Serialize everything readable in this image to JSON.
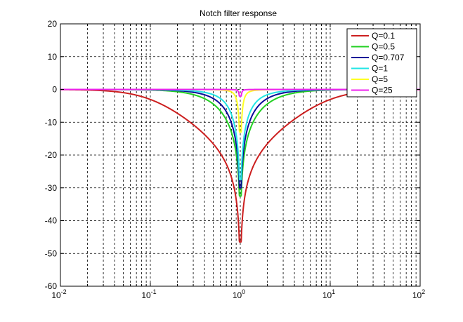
{
  "chart_data": {
    "type": "line",
    "title": "Notch filter response",
    "xlabel": "",
    "ylabel": "",
    "xscale": "log",
    "xlim": [
      0.01,
      100
    ],
    "ylim": [
      -60,
      20
    ],
    "grid": true,
    "legend_position": "top-right",
    "x_ticks": [
      {
        "base": "10",
        "exp": "-2"
      },
      {
        "base": "10",
        "exp": "-1"
      },
      {
        "base": "10",
        "exp": "0"
      },
      {
        "base": "10",
        "exp": "1"
      },
      {
        "base": "10",
        "exp": "2"
      }
    ],
    "y_ticks": [
      "20",
      "10",
      "0",
      "-10",
      "-20",
      "-30",
      "-40",
      "-50",
      "-60"
    ],
    "series": [
      {
        "name": "Q=0.1",
        "q": 0.1,
        "color": "#cc1f1f",
        "min_db": -46.5
      },
      {
        "name": "Q=0.5",
        "q": 0.5,
        "color": "#22d022",
        "min_db": -32.5
      },
      {
        "name": "Q=0.707",
        "q": 0.707,
        "color": "#0a0a99",
        "min_db": -30
      },
      {
        "name": "Q=1",
        "q": 1,
        "color": "#22e5e5",
        "min_db": -27.5
      },
      {
        "name": "Q=5",
        "q": 5,
        "color": "#ffff22",
        "min_db": -13
      },
      {
        "name": "Q=25",
        "q": 25,
        "color": "#ee22ee",
        "min_db": -2
      }
    ]
  }
}
